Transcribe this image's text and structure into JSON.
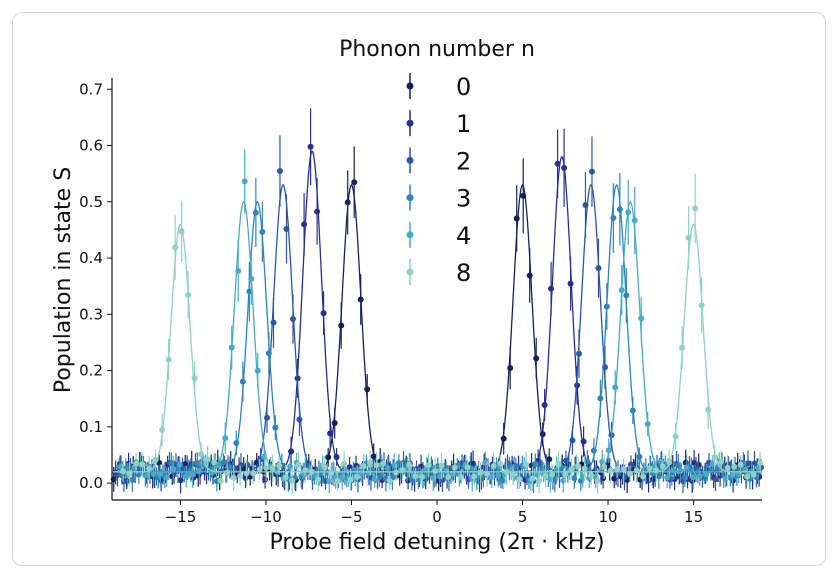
{
  "chart_data": {
    "type": "scatter",
    "xlabel": "Probe field detuning (2π · kHz)",
    "ylabel": "Population in state S",
    "xlim": [
      -19,
      19
    ],
    "ylim": [
      -0.03,
      0.72
    ],
    "xticks": [
      -15,
      -10,
      -5,
      0,
      5,
      10,
      15
    ],
    "xtick_labels": [
      "−15",
      "−10",
      "−5",
      "0",
      "5",
      "10",
      "15"
    ],
    "yticks": [
      0.0,
      0.1,
      0.2,
      0.3,
      0.4,
      0.5,
      0.6,
      0.7
    ],
    "ytick_labels": [
      "0.0",
      "0.1",
      "0.2",
      "0.3",
      "0.4",
      "0.5",
      "0.6",
      "0.7"
    ],
    "legend": {
      "title": "Phonon number n",
      "placement": "top-center"
    },
    "baseline": 0.02,
    "grid": false,
    "series": [
      {
        "name": "0",
        "color": "#14215b",
        "peaks": [
          {
            "x": -5.0,
            "height": 0.53,
            "width": 0.55
          },
          {
            "x": 5.0,
            "height": 0.53,
            "width": 0.55
          }
        ]
      },
      {
        "name": "1",
        "color": "#262f8c",
        "peaks": [
          {
            "x": -7.3,
            "height": 0.59,
            "width": 0.55
          },
          {
            "x": 7.3,
            "height": 0.58,
            "width": 0.55
          }
        ]
      },
      {
        "name": "2",
        "color": "#2a57a5",
        "peaks": [
          {
            "x": -9.0,
            "height": 0.53,
            "width": 0.55
          },
          {
            "x": 9.0,
            "height": 0.53,
            "width": 0.55
          }
        ]
      },
      {
        "name": "3",
        "color": "#2f84b7",
        "peaks": [
          {
            "x": -10.5,
            "height": 0.5,
            "width": 0.55
          },
          {
            "x": 10.5,
            "height": 0.53,
            "width": 0.55
          }
        ]
      },
      {
        "name": "4",
        "color": "#49a9c4",
        "peaks": [
          {
            "x": -11.3,
            "height": 0.5,
            "width": 0.55
          },
          {
            "x": 11.3,
            "height": 0.5,
            "width": 0.55
          }
        ]
      },
      {
        "name": "8",
        "color": "#8fd1c6",
        "peaks": [
          {
            "x": -15.0,
            "height": 0.46,
            "width": 0.55
          },
          {
            "x": 15.0,
            "height": 0.46,
            "width": 0.55
          }
        ]
      }
    ]
  }
}
